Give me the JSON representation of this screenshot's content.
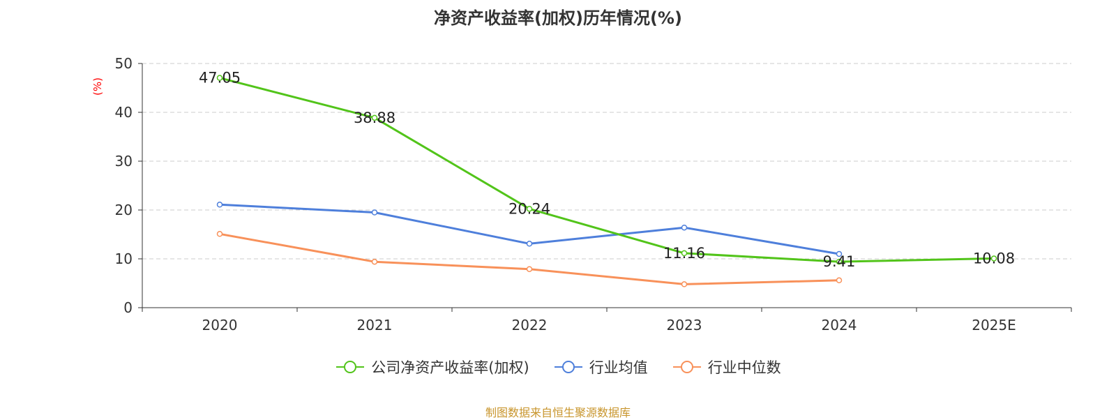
{
  "chart_data": {
    "type": "line",
    "title": "净资产收益率(加权)历年情况(%)",
    "ylabel": "(%)",
    "xlabel": "",
    "ylim": [
      0,
      50
    ],
    "yticks": [
      "0",
      "10",
      "20",
      "30",
      "40",
      "50"
    ],
    "categories": [
      "2020",
      "2021",
      "2022",
      "2023",
      "2024",
      "2025E"
    ],
    "grid": true,
    "legend_position": "bottom",
    "series": [
      {
        "name": "公司净资产收益率(加权)",
        "color": "#52c41a",
        "values": [
          47.05,
          38.88,
          20.24,
          11.16,
          9.41,
          10.08
        ],
        "labels": [
          "47.05",
          "38.88",
          "20.24",
          "11.16",
          "9.41",
          "10.08"
        ]
      },
      {
        "name": "行业均值",
        "color": "#4e7fdb",
        "values": [
          21.1,
          19.5,
          13.1,
          16.4,
          11.0,
          null
        ]
      },
      {
        "name": "行业中位数",
        "color": "#f8915a",
        "values": [
          15.1,
          9.4,
          7.9,
          4.8,
          5.6,
          null
        ]
      }
    ],
    "source": "制图数据来自恒生聚源数据库"
  }
}
